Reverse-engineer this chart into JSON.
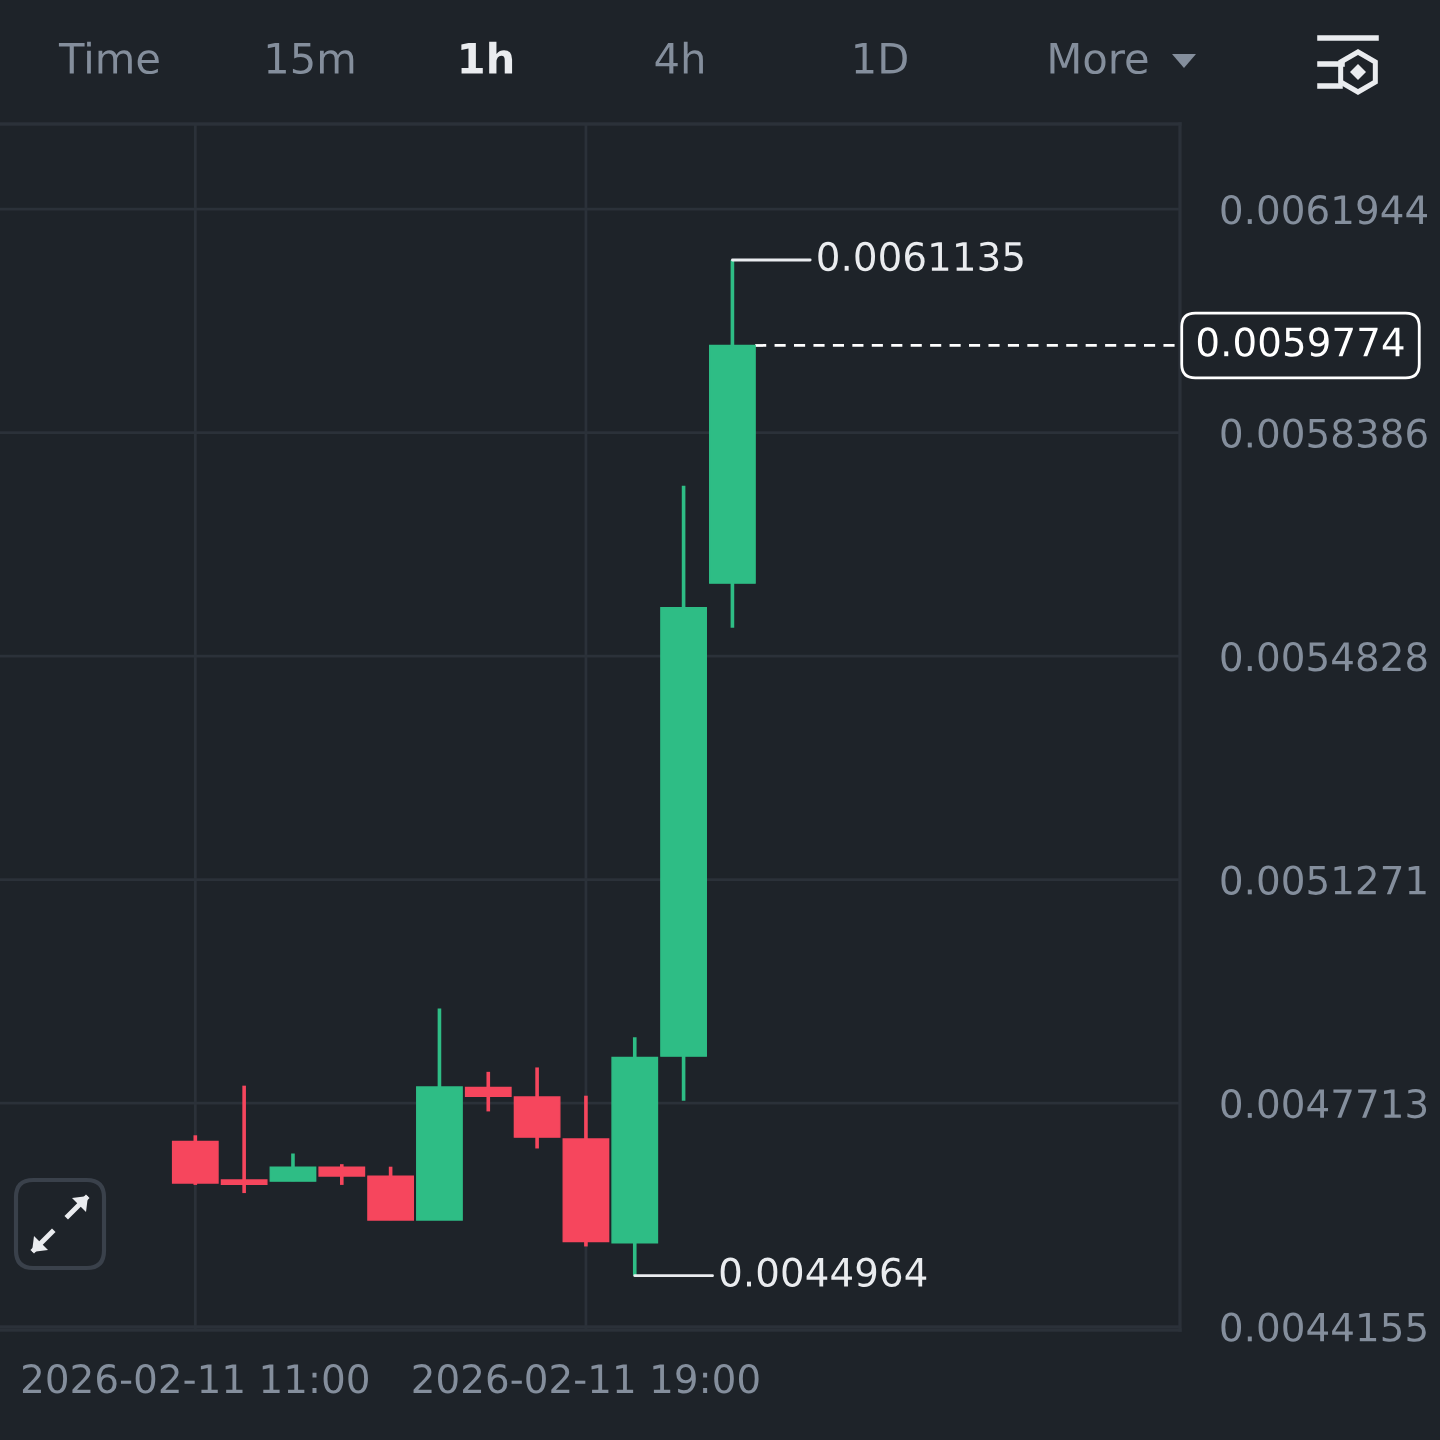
{
  "chart_data": {
    "type": "candlestick",
    "x": [
      "2026-02-11T11:00",
      "2026-02-11T12:00",
      "2026-02-11T13:00",
      "2026-02-11T14:00",
      "2026-02-11T15:00",
      "2026-02-11T16:00",
      "2026-02-11T17:00",
      "2026-02-11T18:00",
      "2026-02-11T19:00",
      "2026-02-11T20:00",
      "2026-02-11T21:00",
      "2026-02-11T22:00"
    ],
    "ohlc": [
      [
        0.00471,
        0.00472,
        0.004641,
        0.004644
      ],
      [
        0.004649,
        0.004799,
        0.004628,
        0.004642
      ],
      [
        0.004647,
        0.004691,
        0.004647,
        0.004669
      ],
      [
        0.004669,
        0.004674,
        0.004641,
        0.004655
      ],
      [
        0.004655,
        0.00467,
        0.004585,
        0.004585
      ],
      [
        0.004585,
        0.004922,
        0.004585,
        0.004797
      ],
      [
        0.004796,
        0.004821,
        0.004758,
        0.004782
      ],
      [
        0.004781,
        0.004828,
        0.004699,
        0.004717
      ],
      [
        0.004714,
        0.004783,
        0.004543,
        0.004551
      ],
      [
        0.004549,
        0.004876,
        0.0044964,
        0.004844
      ],
      [
        0.004846,
        0.005754,
        0.004775,
        0.00556
      ],
      [
        0.005599,
        0.0061135,
        0.005528,
        0.0059774
      ]
    ],
    "colors": [
      "#f6465d",
      "#f6465d",
      "#2ebd85",
      "#f6465d",
      "#f6465d",
      "#2ebd85",
      "#f6465d",
      "#f6465d",
      "#f6465d",
      "#2ebd85",
      "#2ebd85",
      "#2ebd85"
    ],
    "xlim": [
      "2026-02-11T07:00",
      "2026-02-12T07:10"
    ],
    "xticks": [
      {
        "value": "2026-02-11T11:00",
        "label": "2026-02-11 11:00"
      },
      {
        "value": "2026-02-11T19:00",
        "label": "2026-02-11 19:00"
      }
    ],
    "ylim": [
      0.00441,
      0.00633
    ],
    "yticks": [
      0.0044155,
      0.0047713,
      0.0051271,
      0.0054828,
      0.0058386,
      0.0061944
    ],
    "grid": true,
    "ref_lines": [
      {
        "axis": "y",
        "value": 0.0059774,
        "label": "0.0059774",
        "color": "#ffffff",
        "line_style": "dashed"
      }
    ],
    "annotations": [
      "Time",
      "15m",
      "1h",
      "4h",
      "1D",
      "More",
      {
        "text": "0.0061135",
        "x": "2026-02-11T22:00",
        "y": 0.0061135
      },
      {
        "text": "0.0044964",
        "x": "2026-02-11T20:00",
        "y": 0.0044964
      }
    ]
  }
}
